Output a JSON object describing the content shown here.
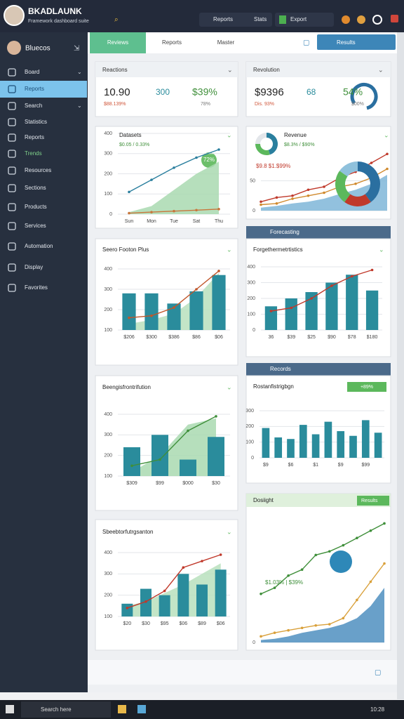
{
  "header": {
    "title": "BKADLAUNK",
    "subtitle": "Framework dashboard suite",
    "search_items": [
      "Reports",
      "Stats",
      "Export"
    ]
  },
  "sidebar": {
    "user": "Bluecos",
    "items": [
      "Board",
      "Reports",
      "Search",
      "Statistics",
      "Reports",
      "Trends",
      "Resources",
      "Sections",
      "Products",
      "Services",
      "Automation",
      "Display",
      "Favorites"
    ]
  },
  "tabs": [
    "Reviews",
    "Reports",
    "Master"
  ],
  "action": "Results",
  "kpis": [
    {
      "title": "Reactions",
      "value": "10.90",
      "sub": "$88.139%",
      "stat1": "300",
      "stat2": "$39%",
      "stat3": "78%"
    },
    {
      "title": "Revolution",
      "value": "$9396",
      "sub": "Dis. 93%",
      "stat1": "68",
      "stat2": "54%",
      "stat3": "$00%"
    }
  ],
  "panels": {
    "forecast": "Forecasting",
    "records": "Records",
    "results": "Results"
  },
  "taskbar": {
    "search": "Search here",
    "time": "10:28"
  },
  "chart_data": [
    {
      "type": "line",
      "title": "Datasets",
      "subtitle": "$0.05 / 0.33%",
      "annotation": "72%",
      "ylim": [
        0,
        400
      ],
      "yticks": [
        0,
        100,
        200,
        300,
        400
      ],
      "categories": [
        "Sun",
        "Mon",
        "Tue",
        "Sat",
        "Thu"
      ],
      "series": [
        {
          "kind": "area",
          "color": "#a9d9b0",
          "values": [
            10,
            40,
            120,
            200,
            260
          ]
        },
        {
          "kind": "line",
          "color": "#2a7f9e",
          "values": [
            110,
            170,
            230,
            280,
            320
          ]
        },
        {
          "kind": "line",
          "color": "#c8763b",
          "values": [
            5,
            10,
            15,
            20,
            25
          ]
        }
      ]
    },
    {
      "type": "line",
      "title": "Revenue",
      "subtitle": "$8.3% / $90%",
      "annotation": "$9.8 $1.$99%",
      "ylim": [
        0,
        100
      ],
      "yticks": [
        0,
        50
      ],
      "x": [
        1,
        2,
        3,
        4,
        5,
        6,
        7,
        8,
        9
      ],
      "xlim": [
        1,
        9
      ],
      "series": [
        {
          "kind": "area",
          "color": "#7fb6d8",
          "values": [
            5,
            8,
            12,
            15,
            20,
            28,
            35,
            45,
            60
          ]
        },
        {
          "kind": "line",
          "color": "#d08a2e",
          "values": [
            10,
            12,
            20,
            25,
            30,
            40,
            45,
            55,
            70
          ]
        },
        {
          "kind": "line",
          "color": "#c0392b",
          "values": [
            15,
            22,
            25,
            35,
            40,
            55,
            65,
            80,
            95
          ]
        }
      ]
    },
    {
      "type": "pie",
      "values": [
        45,
        30,
        25
      ],
      "colors": [
        "#2a7f9e",
        "#5cb85c",
        "#e3e6ea"
      ]
    },
    {
      "type": "pie",
      "values": [
        40,
        20,
        25,
        15
      ],
      "colors": [
        "#2a6fa0",
        "#c0392b",
        "#5cb85c",
        "#8fc1dc"
      ]
    },
    {
      "type": "bar",
      "title": "Seero Footon Plus",
      "ylim": [
        100,
        400
      ],
      "yticks": [
        100,
        200,
        300,
        400
      ],
      "categories": [
        "$206",
        "$300",
        "$386",
        "$86",
        "$06"
      ],
      "series": [
        {
          "kind": "area",
          "color": "#b9e0bd",
          "values": [
            130,
            150,
            180,
            260,
            380
          ]
        },
        {
          "kind": "bar",
          "color": "#2a8c9c",
          "values": [
            280,
            280,
            230,
            290,
            370
          ]
        },
        {
          "kind": "line",
          "color": "#c0572b",
          "values": [
            160,
            170,
            210,
            300,
            390
          ]
        }
      ]
    },
    {
      "type": "bar",
      "title": "Forgethermetrtistics",
      "ylim": [
        0,
        400
      ],
      "yticks": [
        0,
        100,
        200,
        300,
        400
      ],
      "categories": [
        "36",
        "$39",
        "$25",
        "$90",
        "$78",
        "$180"
      ],
      "series": [
        {
          "kind": "bar",
          "color": "#2a8c9c",
          "values": [
            150,
            200,
            240,
            300,
            350,
            250
          ]
        },
        {
          "kind": "line",
          "color": "#c0392b",
          "values": [
            120,
            140,
            200,
            280,
            340,
            380
          ]
        }
      ]
    },
    {
      "type": "bar",
      "title": "Beengisfrontrifution",
      "ylim": [
        100,
        400
      ],
      "yticks": [
        100,
        200,
        300,
        400
      ],
      "categories": [
        "$309",
        "$99",
        "$000",
        "$30"
      ],
      "series": [
        {
          "kind": "area",
          "color": "#a9d9b0",
          "values": [
            120,
            200,
            350,
            380
          ]
        },
        {
          "kind": "bar",
          "color": "#2a8c9c",
          "values": [
            240,
            300,
            180,
            290
          ]
        },
        {
          "kind": "line",
          "color": "#3f8f3a",
          "values": [
            150,
            180,
            320,
            390
          ]
        }
      ]
    },
    {
      "type": "bar",
      "title": "Rostanfistrigbgn",
      "badge": "+89%",
      "ylim": [
        0,
        300
      ],
      "yticks": [
        0,
        100,
        200,
        300
      ],
      "categories": [
        "$9",
        null,
        "$6",
        null,
        "$1",
        null,
        "$9",
        null,
        "$99",
        null
      ],
      "series": [
        {
          "kind": "bar",
          "color": "#2a8c9c",
          "values": [
            190,
            130,
            120,
            210,
            150,
            230,
            170,
            140,
            240,
            160
          ]
        }
      ]
    },
    {
      "type": "bar",
      "title": "Sbeebtorfutrgsanton",
      "ylim": [
        100,
        400
      ],
      "yticks": [
        100,
        200,
        300,
        400
      ],
      "categories": [
        "$20",
        "$30",
        "$95",
        "$06",
        "$89",
        "$06"
      ],
      "series": [
        {
          "kind": "area",
          "color": "#b9e0bd",
          "values": [
            150,
            170,
            210,
            250,
            300,
            350
          ]
        },
        {
          "kind": "bar",
          "color": "#2a8c9c",
          "values": [
            160,
            230,
            200,
            300,
            250,
            320
          ]
        },
        {
          "kind": "line",
          "color": "#c0392b",
          "values": [
            140,
            170,
            220,
            330,
            360,
            390
          ]
        }
      ]
    },
    {
      "type": "line",
      "title": "Dosiight",
      "annotation": "$1.03% | $39%",
      "ylim": [
        0,
        100
      ],
      "yticks": [
        0
      ],
      "x": [
        1,
        2,
        3,
        4,
        5,
        6,
        7,
        8,
        9,
        10
      ],
      "xlim": [
        1,
        10
      ],
      "series": [
        {
          "kind": "area",
          "color": "#4f8fc0",
          "values": [
            2,
            3,
            5,
            8,
            10,
            12,
            15,
            20,
            30,
            45
          ]
        },
        {
          "kind": "line",
          "color": "#d9a03a",
          "values": [
            5,
            8,
            10,
            12,
            14,
            15,
            20,
            35,
            50,
            65
          ]
        },
        {
          "kind": "line",
          "color": "#3f8f3a",
          "values": [
            40,
            45,
            55,
            60,
            72,
            75,
            80,
            86,
            92,
            98
          ]
        }
      ]
    }
  ]
}
